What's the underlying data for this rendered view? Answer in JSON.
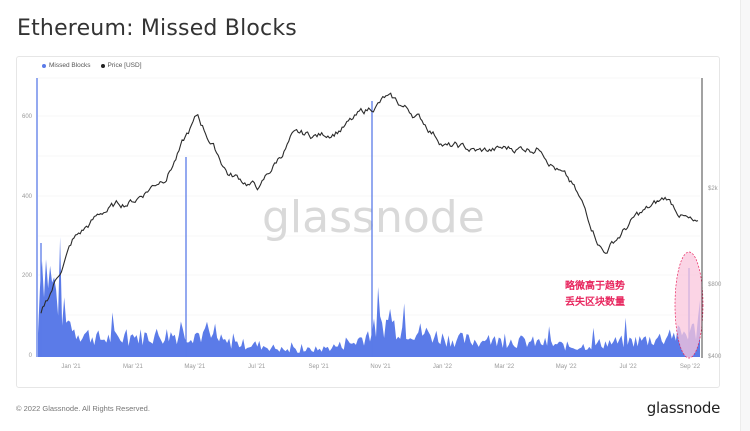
{
  "page": {
    "title": "Ethereum: Missed Blocks",
    "footer_copyright": "© 2022 Glassnode. All Rights Reserved.",
    "footer_logo": "glassnode",
    "watermark": "glassnode"
  },
  "legend": {
    "items": [
      {
        "label": "Missed Blocks",
        "color": "#5b7be8"
      },
      {
        "label": "Price [USD]",
        "color": "#222222"
      }
    ]
  },
  "annotation": {
    "line1": "略微高于趋势",
    "line2": "丢失区块数量",
    "color": "#e8275f",
    "highlight_fill": "#f9c6dc"
  },
  "chart_data": {
    "type": "bar+line",
    "title": "Ethereum: Missed Blocks",
    "x_tick_labels": [
      "Jan '21",
      "Mar '21",
      "May '21",
      "Jul '21",
      "Sep '21",
      "Nov '21",
      "Jan '22",
      "Mar '22",
      "May '22",
      "Jul '22",
      "Sep '22"
    ],
    "left_axis": {
      "label": "Missed Blocks",
      "ticks": [
        "0",
        "200",
        "400",
        "600"
      ],
      "range": [
        0,
        700
      ]
    },
    "right_axis": {
      "label": "Price [USD]",
      "scale": "log",
      "ticks": [
        "$400",
        "$800",
        "$2k"
      ],
      "range": [
        400,
        5000
      ]
    },
    "series": [
      {
        "name": "Missed Blocks",
        "type": "bar",
        "color": "#5b7be8",
        "approx_monthly": [
          {
            "period": "Dec '20",
            "value": 280
          },
          {
            "period": "Jan '21",
            "value": 70
          },
          {
            "period": "Feb '21",
            "value": 45
          },
          {
            "period": "Mar '21",
            "value": 50
          },
          {
            "period": "Apr '21",
            "value": 55
          },
          {
            "period": "May '21",
            "value": 60
          },
          {
            "period": "Jun '21",
            "value": 35
          },
          {
            "period": "Jul '21",
            "value": 30
          },
          {
            "period": "Aug '21",
            "value": 15
          },
          {
            "period": "Sep '21",
            "value": 20
          },
          {
            "period": "Oct '21",
            "value": 35
          },
          {
            "period": "Nov '21",
            "value": 85
          },
          {
            "period": "Dec '21",
            "value": 65
          },
          {
            "period": "Jan '22",
            "value": 45
          },
          {
            "period": "Feb '22",
            "value": 40
          },
          {
            "period": "Mar '22",
            "value": 40
          },
          {
            "period": "Apr '22",
            "value": 35
          },
          {
            "period": "May '22",
            "value": 25
          },
          {
            "period": "Jun '22",
            "value": 35
          },
          {
            "period": "Jul '22",
            "value": 40
          },
          {
            "period": "Aug '22",
            "value": 50
          },
          {
            "period": "Sep '22",
            "value": 70
          }
        ],
        "spikes": [
          {
            "period": "Dec '20",
            "value": 700
          },
          {
            "period": "May '21",
            "value": 500
          },
          {
            "period": "Nov '21",
            "value": 660
          },
          {
            "period": "Sep '22",
            "value": 250
          }
        ]
      },
      {
        "name": "Price [USD]",
        "type": "line",
        "color": "#222222",
        "approx_monthly": [
          {
            "period": "Dec '20",
            "value": 600
          },
          {
            "period": "Jan '21",
            "value": 1200
          },
          {
            "period": "Feb '21",
            "value": 1600
          },
          {
            "period": "Mar '21",
            "value": 1800
          },
          {
            "period": "Apr '21",
            "value": 2300
          },
          {
            "period": "May '21",
            "value": 3900
          },
          {
            "period": "Jun '21",
            "value": 2300
          },
          {
            "period": "Jul '21",
            "value": 2000
          },
          {
            "period": "Aug '21",
            "value": 3200
          },
          {
            "period": "Sep '21",
            "value": 3300
          },
          {
            "period": "Oct '21",
            "value": 3800
          },
          {
            "period": "Nov '21",
            "value": 4700
          },
          {
            "period": "Dec '21",
            "value": 4000
          },
          {
            "period": "Jan '22",
            "value": 3000
          },
          {
            "period": "Feb '22",
            "value": 2800
          },
          {
            "period": "Mar '22",
            "value": 2900
          },
          {
            "period": "Apr '22",
            "value": 3000
          },
          {
            "period": "May '22",
            "value": 2000
          },
          {
            "period": "Jun '22",
            "value": 1100
          },
          {
            "period": "Jul '22",
            "value": 1500
          },
          {
            "period": "Aug '22",
            "value": 1800
          },
          {
            "period": "Sep '22",
            "value": 1350
          }
        ]
      }
    ],
    "grid": true,
    "legend_position": "top-left"
  }
}
